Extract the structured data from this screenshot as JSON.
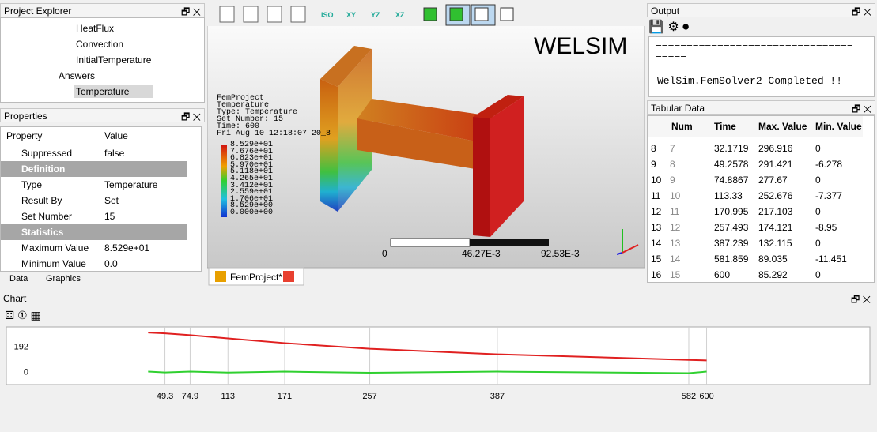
{
  "project_explorer": {
    "title": "Project Explorer",
    "items": [
      "HeatFlux",
      "Convection",
      "InitialTemperature",
      "Answers",
      "Temperature"
    ]
  },
  "properties": {
    "title": "Properties",
    "header": [
      "Property",
      "Value"
    ],
    "rows": [
      [
        "Suppressed",
        "false"
      ],
      [
        "Definition"
      ],
      [
        "Type",
        "Temperature"
      ],
      [
        "Result By",
        "Set"
      ],
      [
        "Set Number",
        "15"
      ],
      [
        "Statistics"
      ],
      [
        "Maximum Value",
        "8.529e+01"
      ],
      [
        "Minimum Value",
        "0.0"
      ]
    ],
    "tabs": [
      "Data",
      "Graphics"
    ]
  },
  "viewport": {
    "brand": "WELSIM",
    "info": [
      "FemProject",
      "Temperature",
      "Type: Temperature",
      "Set Number: 15",
      "Time: 600",
      "Fri Aug 10 12:18:07 20_8"
    ],
    "legend": [
      "8.529e+01",
      "7.676e+01",
      "6.823e+01",
      "5.970e+01",
      "5.118e+01",
      "4.265e+01",
      "3.412e+01",
      "2.559e+01",
      "1.706e+01",
      "8.529e+00",
      "0.000e+00"
    ],
    "scale": [
      "0",
      "46.27E-3",
      "92.53E-3"
    ],
    "tab": "FemProject*"
  },
  "output": {
    "title": "Output",
    "lines": [
      "================================",
      "=====",
      "WelSim.FemSolver2 Completed !!"
    ]
  },
  "tabular": {
    "title": "Tabular Data",
    "columns": [
      "Num",
      "Time",
      "Max. Value",
      "Min. Value"
    ],
    "row_numbers": [
      8,
      9,
      10,
      11,
      12,
      13,
      14,
      15,
      16
    ],
    "rows": [
      [
        7,
        32.1719,
        296.916,
        0
      ],
      [
        8,
        49.2578,
        291.421,
        -6.278
      ],
      [
        9,
        74.8867,
        277.67,
        0
      ],
      [
        10,
        113.33,
        252.676,
        -7.377
      ],
      [
        11,
        170.995,
        217.103,
        0
      ],
      [
        12,
        257.493,
        174.121,
        -8.95
      ],
      [
        13,
        387.239,
        132.115,
        0
      ],
      [
        14,
        581.859,
        89.035,
        -11.451
      ],
      [
        15,
        600,
        85.292,
        0
      ]
    ]
  },
  "chart_data": {
    "type": "line",
    "title": "Chart",
    "x": [
      32.1719,
      49.2578,
      74.8867,
      113.33,
      170.995,
      257.493,
      387.239,
      581.859,
      600
    ],
    "series": [
      {
        "name": "Max. Value",
        "color": "#e02020",
        "values": [
          296.916,
          291.421,
          277.67,
          252.676,
          217.103,
          174.121,
          132.115,
          89.035,
          85.292
        ]
      },
      {
        "name": "Min. Value",
        "color": "#30d030",
        "values": [
          0,
          -6.278,
          0,
          -7.377,
          0,
          -8.95,
          0,
          -11.451,
          0
        ]
      }
    ],
    "xlim": [
      -112,
      766
    ],
    "ylim": [
      -99,
      340
    ],
    "yticks": [
      0,
      192
    ],
    "xticks": [
      {
        "value": 49.2578,
        "label": "49.3"
      },
      {
        "value": 74.8867,
        "label": "74.9"
      },
      {
        "value": 113.33,
        "label": "113"
      },
      {
        "value": 170.995,
        "label": "171"
      },
      {
        "value": 257.493,
        "label": "257"
      },
      {
        "value": 387.239,
        "label": "387"
      },
      {
        "value": 581.859,
        "label": "582"
      },
      {
        "value": 600,
        "label": "600"
      }
    ],
    "grid": true
  }
}
